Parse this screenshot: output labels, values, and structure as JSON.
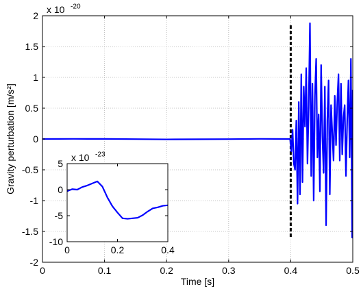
{
  "chart_data": [
    {
      "type": "line",
      "title": "",
      "xlabel": "Time [s]",
      "ylabel": "Gravity perturbation [m/s²]",
      "exponent_label": "x 10",
      "exponent_power": "-20",
      "xlim": [
        0,
        0.5
      ],
      "ylim": [
        -2,
        2
      ],
      "xticks": [
        "0",
        "0.1",
        "0.2",
        "0.3",
        "0.4",
        "0.5"
      ],
      "yticks": [
        "2",
        "1.5",
        "1",
        "0.5",
        "0",
        "-0.5",
        "-1",
        "-1.5",
        "-2"
      ],
      "grid": true,
      "marker_line": {
        "x": 0.4,
        "style": "dashed",
        "color": "#000000"
      },
      "line_color": "#0000ff",
      "series": [
        {
          "x": [
            0,
            0.05,
            0.1,
            0.15,
            0.2,
            0.25,
            0.3,
            0.35,
            0.399,
            0.401,
            0.403,
            0.405,
            0.407,
            0.409,
            0.411,
            0.413,
            0.415,
            0.417,
            0.419,
            0.421,
            0.423,
            0.425,
            0.427,
            0.429,
            0.431,
            0.433,
            0.435,
            0.437,
            0.439,
            0.441,
            0.443,
            0.445,
            0.447,
            0.449,
            0.451,
            0.453,
            0.455,
            0.457,
            0.459,
            0.461,
            0.463,
            0.465,
            0.467,
            0.469,
            0.471,
            0.473,
            0.475,
            0.477,
            0.479,
            0.481,
            0.483,
            0.485,
            0.487,
            0.489,
            0.491,
            0.493,
            0.495,
            0.497,
            0.499,
            0.5
          ],
          "values": [
            0,
            0.002,
            0.001,
            -0.002,
            -0.006,
            -0.004,
            -0.002,
            0.002,
            0,
            -0.2,
            0.15,
            -0.4,
            -0.5,
            0.3,
            -1.05,
            0.6,
            -0.9,
            1.05,
            -0.7,
            0.85,
            0.2,
            1.15,
            -0.4,
            0.55,
            1.88,
            -0.6,
            0.9,
            -1.0,
            0.7,
            1.3,
            -0.3,
            0.4,
            -0.85,
            1.2,
            0.05,
            -0.55,
            0.85,
            -1.4,
            0.3,
            0.95,
            -0.9,
            0.55,
            0.1,
            -0.35,
            0.7,
            -0.1,
            0.6,
            1.05,
            -0.35,
            0.9,
            -0.25,
            0.35,
            0.55,
            -0.6,
            0.3,
            0.95,
            -0.3,
            1.3,
            -1.6,
            0.8
          ]
        }
      ]
    },
    {
      "type": "line",
      "title": "",
      "xlabel": "",
      "ylabel": "",
      "exponent_label": "x 10",
      "exponent_power": "-23",
      "xlim": [
        0,
        0.4
      ],
      "ylim": [
        -10,
        5
      ],
      "xticks": [
        "0",
        "0.2",
        "0.4"
      ],
      "yticks": [
        "5",
        "0",
        "-5",
        "-10"
      ],
      "grid": false,
      "line_color": "#0000ff",
      "series": [
        {
          "x": [
            0,
            0.02,
            0.04,
            0.06,
            0.08,
            0.1,
            0.12,
            0.14,
            0.16,
            0.18,
            0.2,
            0.22,
            0.24,
            0.26,
            0.28,
            0.3,
            0.32,
            0.34,
            0.36,
            0.38,
            0.4
          ],
          "values": [
            -0.3,
            0.1,
            0.0,
            0.5,
            0.8,
            1.2,
            1.6,
            0.6,
            -1.5,
            -3.2,
            -4.4,
            -5.5,
            -5.6,
            -5.5,
            -5.4,
            -4.9,
            -4.2,
            -3.6,
            -3.4,
            -3.1,
            -3.0
          ]
        }
      ]
    }
  ]
}
